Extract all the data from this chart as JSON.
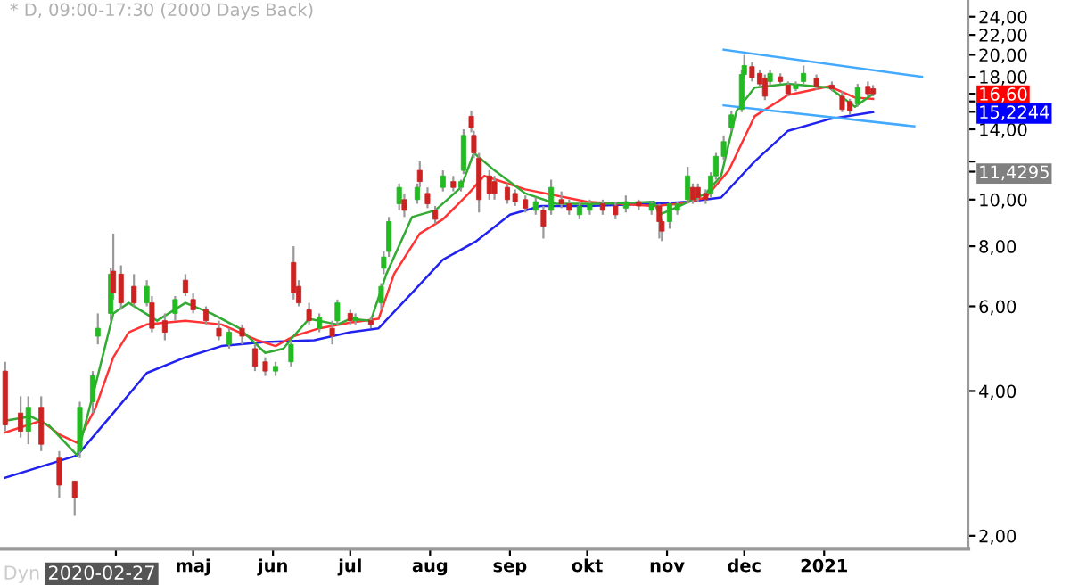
{
  "chart_data": {
    "type": "candlestick",
    "title": "* D, 09:00-17:30 (2000 Days Back)",
    "x": [
      "2020-02-18",
      "2020-02-24",
      "2020-02-27",
      "2020-03-03",
      "2020-03-10",
      "2020-03-16",
      "2020-03-18",
      "2020-03-23",
      "2020-03-25",
      "2020-03-30",
      "2020-03-31",
      "2020-04-03",
      "2020-04-08",
      "2020-04-13",
      "2020-04-15",
      "2020-04-20",
      "2020-04-24",
      "2020-04-28",
      "2020-05-01",
      "2020-05-06",
      "2020-05-11",
      "2020-05-15",
      "2020-05-20",
      "2020-05-25",
      "2020-05-29",
      "2020-06-02",
      "2020-06-08",
      "2020-06-09",
      "2020-06-11",
      "2020-06-15",
      "2020-06-19",
      "2020-06-24",
      "2020-06-26",
      "2020-07-01",
      "2020-07-03",
      "2020-07-09",
      "2020-07-13",
      "2020-07-14",
      "2020-07-16",
      "2020-07-20",
      "2020-07-22",
      "2020-07-27",
      "2020-07-28",
      "2020-07-31",
      "2020-08-03",
      "2020-08-06",
      "2020-08-10",
      "2020-08-13",
      "2020-08-14",
      "2020-08-17",
      "2020-08-18",
      "2020-08-20",
      "2020-08-24",
      "2020-08-26",
      "2020-08-31",
      "2020-09-03",
      "2020-09-07",
      "2020-09-11",
      "2020-09-14",
      "2020-09-17",
      "2020-09-21",
      "2020-09-24",
      "2020-09-28",
      "2020-10-02",
      "2020-10-07",
      "2020-10-12",
      "2020-10-16",
      "2020-10-21",
      "2020-10-26",
      "2020-10-29",
      "2020-10-30",
      "2020-11-02",
      "2020-11-05",
      "2020-11-09",
      "2020-11-11",
      "2020-11-13",
      "2020-11-16",
      "2020-11-18",
      "2020-11-20",
      "2020-11-23",
      "2020-11-26",
      "2020-11-30",
      "2020-12-01",
      "2020-12-04",
      "2020-12-07",
      "2020-12-09",
      "2020-12-11",
      "2020-12-15",
      "2020-12-18",
      "2020-12-21",
      "2020-12-24",
      "2020-12-29",
      "2021-01-04",
      "2021-01-08",
      "2021-01-11",
      "2021-01-14",
      "2021-01-18",
      "2021-01-20"
    ],
    "ohlc": [
      [
        4.4,
        4.6,
        3.3,
        3.4
      ],
      [
        3.6,
        3.9,
        3.2,
        3.3
      ],
      [
        3.3,
        3.9,
        3.1,
        3.7
      ],
      [
        3.7,
        3.9,
        3.0,
        3.1
      ],
      [
        2.9,
        3.0,
        2.4,
        2.55
      ],
      [
        2.6,
        2.6,
        2.2,
        2.4
      ],
      [
        3.0,
        3.8,
        2.9,
        3.7
      ],
      [
        3.8,
        4.4,
        3.6,
        4.3
      ],
      [
        5.2,
        5.8,
        5.0,
        5.4
      ],
      [
        5.8,
        7.2,
        5.6,
        7.0
      ],
      [
        7.1,
        8.5,
        6.2,
        6.4
      ],
      [
        7.0,
        7.3,
        5.9,
        6.1
      ],
      [
        6.6,
        7.0,
        6.0,
        6.1
      ],
      [
        6.1,
        6.8,
        6.0,
        6.6
      ],
      [
        6.1,
        6.3,
        5.3,
        5.4
      ],
      [
        5.6,
        5.8,
        5.1,
        5.3
      ],
      [
        5.8,
        6.3,
        5.6,
        6.2
      ],
      [
        6.8,
        7.0,
        6.3,
        6.4
      ],
      [
        6.2,
        6.4,
        5.8,
        5.9
      ],
      [
        5.9,
        6.0,
        5.5,
        5.6
      ],
      [
        5.4,
        5.6,
        5.1,
        5.2
      ],
      [
        5.0,
        5.4,
        4.9,
        5.3
      ],
      [
        5.4,
        5.5,
        5.0,
        5.2
      ],
      [
        4.9,
        5.0,
        4.4,
        4.5
      ],
      [
        4.6,
        4.7,
        4.3,
        4.4
      ],
      [
        4.4,
        4.6,
        4.3,
        4.5
      ],
      [
        4.6,
        5.1,
        4.5,
        5.0
      ],
      [
        7.4,
        8.0,
        6.2,
        6.4
      ],
      [
        6.6,
        6.8,
        6.0,
        6.1
      ],
      [
        5.9,
        6.1,
        5.5,
        5.6
      ],
      [
        5.4,
        5.8,
        5.3,
        5.7
      ],
      [
        5.4,
        5.6,
        5.0,
        5.2
      ],
      [
        5.6,
        6.2,
        5.5,
        6.1
      ],
      [
        5.8,
        5.9,
        5.5,
        5.6
      ],
      [
        5.6,
        5.8,
        5.5,
        5.7
      ],
      [
        5.6,
        5.7,
        5.4,
        5.5
      ],
      [
        6.1,
        6.7,
        5.9,
        6.6
      ],
      [
        7.2,
        7.8,
        7.0,
        7.6
      ],
      [
        7.8,
        9.2,
        7.6,
        9.0
      ],
      [
        9.8,
        10.8,
        9.5,
        10.6
      ],
      [
        10.0,
        10.3,
        9.2,
        9.5
      ],
      [
        10.0,
        10.8,
        9.8,
        10.6
      ],
      [
        11.5,
        12.0,
        10.6,
        10.9
      ],
      [
        10.3,
        10.6,
        9.6,
        9.8
      ],
      [
        9.5,
        9.7,
        8.9,
        9.1
      ],
      [
        10.6,
        11.5,
        10.4,
        11.2
      ],
      [
        10.9,
        11.2,
        10.4,
        10.6
      ],
      [
        10.6,
        11.0,
        10.4,
        10.9
      ],
      [
        11.5,
        14.0,
        11.3,
        13.6
      ],
      [
        14.9,
        15.3,
        13.8,
        14.1
      ],
      [
        13.6,
        13.9,
        12.2,
        12.5
      ],
      [
        12.2,
        12.5,
        9.4,
        10.0
      ],
      [
        11.2,
        11.5,
        10.0,
        10.3
      ],
      [
        10.9,
        11.2,
        10.0,
        10.3
      ],
      [
        10.6,
        10.8,
        9.8,
        10.0
      ],
      [
        10.3,
        10.5,
        9.7,
        9.9
      ],
      [
        10.0,
        10.2,
        9.4,
        9.6
      ],
      [
        9.5,
        10.1,
        9.3,
        9.9
      ],
      [
        9.5,
        9.7,
        8.3,
        8.8
      ],
      [
        9.5,
        11.0,
        9.3,
        10.6
      ],
      [
        10.0,
        10.4,
        9.6,
        9.8
      ],
      [
        9.8,
        10.0,
        9.3,
        9.5
      ],
      [
        9.3,
        9.9,
        9.1,
        9.7
      ],
      [
        9.5,
        10.0,
        9.3,
        9.8
      ],
      [
        9.8,
        10.0,
        9.3,
        9.5
      ],
      [
        9.7,
        9.9,
        9.1,
        9.3
      ],
      [
        9.6,
        10.2,
        9.4,
        9.9
      ],
      [
        9.9,
        10.0,
        9.5,
        9.7
      ],
      [
        9.5,
        9.9,
        9.3,
        9.8
      ],
      [
        9.7,
        9.8,
        8.3,
        9.0
      ],
      [
        9.0,
        9.1,
        8.2,
        8.6
      ],
      [
        9.0,
        9.9,
        8.7,
        9.8
      ],
      [
        9.5,
        9.9,
        9.3,
        9.8
      ],
      [
        10.0,
        11.7,
        9.8,
        11.2
      ],
      [
        10.6,
        10.8,
        9.8,
        10.0
      ],
      [
        10.6,
        10.8,
        9.9,
        10.1
      ],
      [
        10.3,
        10.5,
        9.8,
        10.0
      ],
      [
        10.3,
        11.4,
        10.1,
        11.2
      ],
      [
        11.2,
        12.5,
        11.0,
        12.3
      ],
      [
        12.3,
        13.6,
        12.1,
        13.2
      ],
      [
        14.1,
        15.3,
        13.9,
        15.0
      ],
      [
        15.4,
        18.6,
        15.2,
        18.2
      ],
      [
        18.2,
        20.0,
        17.8,
        19.0
      ],
      [
        18.9,
        19.3,
        17.6,
        17.9
      ],
      [
        18.3,
        18.6,
        17.1,
        17.4
      ],
      [
        17.9,
        18.2,
        16.1,
        16.4
      ],
      [
        17.6,
        18.6,
        17.3,
        18.3
      ],
      [
        18.0,
        18.3,
        17.4,
        17.6
      ],
      [
        17.3,
        17.6,
        16.4,
        16.6
      ],
      [
        17.0,
        17.6,
        16.8,
        17.3
      ],
      [
        17.6,
        19.0,
        17.4,
        18.3
      ],
      [
        17.9,
        18.2,
        16.9,
        17.2
      ],
      [
        17.3,
        17.6,
        16.8,
        17.0
      ],
      [
        16.4,
        16.8,
        15.2,
        15.4
      ],
      [
        16.0,
        16.2,
        15.0,
        15.3
      ],
      [
        15.8,
        17.4,
        15.6,
        17.1
      ],
      [
        17.2,
        17.6,
        16.4,
        16.6
      ],
      [
        17.0,
        17.3,
        16.4,
        16.6
      ]
    ],
    "series": [
      {
        "type": "line",
        "color": "#2222ee",
        "x": [
          "2020-02-18",
          "2020-03-17",
          "2020-03-31",
          "2020-04-13",
          "2020-04-28",
          "2020-05-12",
          "2020-05-29",
          "2020-06-17",
          "2020-07-01",
          "2020-07-12",
          "2020-07-25",
          "2020-08-06",
          "2020-08-19",
          "2020-09-01",
          "2020-09-13",
          "2020-10-01",
          "2020-10-27",
          "2020-11-09",
          "2020-11-22",
          "2020-12-05",
          "2020-12-18",
          "2021-01-03",
          "2021-01-20"
        ],
        "values": [
          2.64,
          2.94,
          3.6,
          4.36,
          4.7,
          4.96,
          5.06,
          5.1,
          5.3,
          5.4,
          6.4,
          7.5,
          8.2,
          9.3,
          9.7,
          9.7,
          9.8,
          9.9,
          10.1,
          12.0,
          13.9,
          14.7,
          15.2
        ]
      },
      {
        "type": "line",
        "color": "#ff3333",
        "x": [
          "2020-02-18",
          "2020-03-03",
          "2020-03-10",
          "2020-03-17",
          "2020-03-24",
          "2020-03-31",
          "2020-04-06",
          "2020-04-13",
          "2020-04-28",
          "2020-05-12",
          "2020-05-26",
          "2020-06-02",
          "2020-06-09",
          "2020-06-19",
          "2020-07-01",
          "2020-07-12",
          "2020-07-18",
          "2020-07-28",
          "2020-08-06",
          "2020-08-16",
          "2020-08-22",
          "2020-09-07",
          "2020-10-01",
          "2020-10-27",
          "2020-11-06",
          "2020-11-16",
          "2020-11-25",
          "2020-12-05",
          "2020-12-18",
          "2021-01-03",
          "2021-01-13",
          "2021-01-20"
        ],
        "values": [
          3.28,
          3.47,
          3.25,
          3.12,
          3.68,
          4.7,
          5.3,
          5.5,
          5.6,
          5.5,
          5.1,
          4.96,
          5.2,
          5.4,
          5.55,
          5.65,
          7.0,
          8.5,
          9.1,
          10.3,
          11.2,
          10.5,
          9.9,
          9.7,
          9.8,
          10.1,
          11.5,
          14.9,
          16.5,
          17.2,
          16.3,
          16.2
        ]
      },
      {
        "type": "line",
        "color": "#33aa33",
        "x": [
          "2020-02-18",
          "2020-02-28",
          "2020-03-06",
          "2020-03-17",
          "2020-03-24",
          "2020-03-31",
          "2020-04-06",
          "2020-04-17",
          "2020-04-28",
          "2020-05-08",
          "2020-05-19",
          "2020-05-29",
          "2020-06-05",
          "2020-06-09",
          "2020-06-15",
          "2020-06-26",
          "2020-07-01",
          "2020-07-09",
          "2020-07-15",
          "2020-07-25",
          "2020-08-03",
          "2020-08-13",
          "2020-08-18",
          "2020-08-26",
          "2020-09-07",
          "2020-09-19",
          "2020-10-08",
          "2020-10-27",
          "2020-10-29",
          "2020-11-06",
          "2020-11-16",
          "2020-11-22",
          "2020-11-28",
          "2020-12-05",
          "2020-12-18",
          "2021-01-03",
          "2021-01-13",
          "2021-01-20"
        ],
        "values": [
          3.47,
          3.54,
          3.39,
          2.94,
          4.1,
          5.8,
          6.1,
          5.6,
          6.1,
          5.8,
          5.4,
          4.8,
          4.9,
          5.2,
          5.65,
          5.5,
          5.65,
          5.6,
          7.0,
          9.2,
          9.5,
          10.6,
          12.5,
          11.5,
          10.3,
          9.8,
          9.8,
          9.9,
          9.3,
          9.7,
          10.3,
          11.2,
          15.3,
          17.1,
          17.4,
          17.1,
          15.6,
          16.6
        ]
      },
      {
        "type": "line",
        "color": "#44aaff",
        "x": [
          "2020-11-23",
          "2021-02-08"
        ],
        "values": [
          20.5,
          18.0
        ]
      },
      {
        "type": "line",
        "color": "#44aaff",
        "x": [
          "2020-11-23",
          "2021-02-05"
        ],
        "values": [
          15.7,
          14.2
        ]
      }
    ],
    "log": "y",
    "ylim": [
      1.88,
      26
    ],
    "yticks": [
      {
        "value": 2,
        "label": "2,00"
      },
      {
        "value": 4,
        "label": "4,00"
      },
      {
        "value": 6,
        "label": "6,00"
      },
      {
        "value": 8,
        "label": "8,00"
      },
      {
        "value": 10,
        "label": "10,00"
      },
      {
        "value": 12,
        "label": null
      },
      {
        "value": 14,
        "label": "14,00"
      },
      {
        "value": 16,
        "label": null
      },
      {
        "value": 16.6,
        "label": "16,60"
      },
      {
        "value": 15.2244,
        "label": "15,2244"
      },
      {
        "value": 11.4295,
        "label": "11,4295"
      },
      {
        "value": 18,
        "label": "18,00"
      },
      {
        "value": 20,
        "label": "20,00"
      },
      {
        "value": 22,
        "label": "22,00"
      },
      {
        "value": 24,
        "label": "24,00"
      }
    ],
    "xlim": [
      "2020-02-16",
      "2021-02-26"
    ],
    "xticks": [
      {
        "value": "2020-04-01",
        "label": null
      },
      {
        "value": "2020-05-01",
        "label": "maj"
      },
      {
        "value": "2020-06-01",
        "label": "jun"
      },
      {
        "value": "2020-07-01",
        "label": "jul"
      },
      {
        "value": "2020-08-01",
        "label": "aug"
      },
      {
        "value": "2020-09-01",
        "label": "sep"
      },
      {
        "value": "2020-10-01",
        "label": "okt"
      },
      {
        "value": "2020-11-01",
        "label": "nov"
      },
      {
        "value": "2020-12-01",
        "label": "dec"
      },
      {
        "value": "2021-01-01",
        "label": "2021"
      }
    ],
    "annotations": [
      "Dyn",
      "2020-02-27"
    ],
    "legend": false,
    "grid": false
  }
}
